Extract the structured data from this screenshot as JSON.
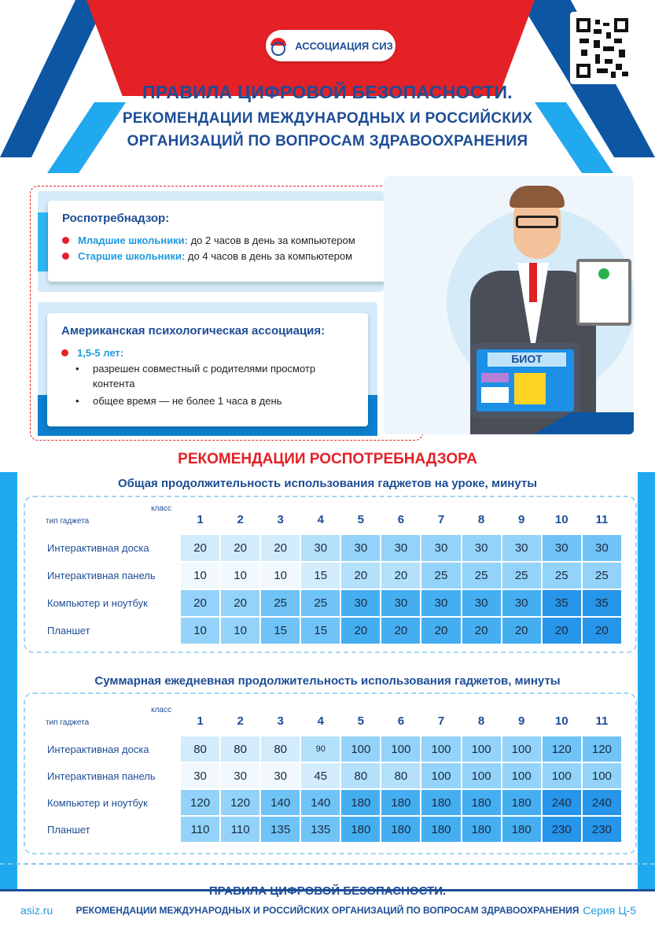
{
  "header": {
    "logo_text": "АССОЦИАЦИЯ СИЗ",
    "title_line1": "ПРАВИЛА ЦИФРОВОЙ БЕЗОПАСНОСТИ.",
    "title_line2": "РЕКОМЕНДАЦИИ МЕЖДУНАРОДНЫХ И РОССИЙСКИХ",
    "title_line3": "ОРГАНИЗАЦИЙ ПО ВОПРОСАМ ЗДРАВООХРАНЕНИЯ"
  },
  "colors": {
    "brand_blue": "#1d4d96",
    "red": "#e32127",
    "light_blue": "#20a9ee",
    "dark_blue": "#0c56a3"
  },
  "info": {
    "rospotreb": {
      "title": "Роспотребнадзор:",
      "items": [
        {
          "label": "Младшие школьники:",
          "text": " до 2 часов в день за компьютером"
        },
        {
          "label": "Старшие школьники:",
          "text": " до 4 часов в день за компьютером"
        }
      ]
    },
    "apa": {
      "title": "Американская психологическая ассоциация:",
      "age": "1,5-5 лет:",
      "subitems": [
        "разрешен  совместный с родителями просмотр контента",
        "общее время — не более 1 часа в день"
      ]
    }
  },
  "illustration": {
    "tablet_label": "БИОТ"
  },
  "section_title": "РЕКОМЕНДАЦИИ РОСПОТРЕБНАДЗОРА",
  "corner": {
    "col": "класс",
    "row": "тип гаджета"
  },
  "grades": [
    "1",
    "2",
    "3",
    "4",
    "5",
    "6",
    "7",
    "8",
    "9",
    "10",
    "11"
  ],
  "table1": {
    "title": "Общая продолжительность использования гаджетов на уроке, минуты",
    "rows": [
      {
        "label": "Интерактивная доска",
        "values": [
          "20",
          "20",
          "20",
          "30",
          "30",
          "30",
          "30",
          "30",
          "30",
          "30",
          "30"
        ]
      },
      {
        "label": "Интерактивная панель",
        "values": [
          "10",
          "10",
          "10",
          "15",
          "20",
          "20",
          "25",
          "25",
          "25",
          "25",
          "25"
        ]
      },
      {
        "label": "Компьютер и ноутбук",
        "values": [
          "20",
          "20",
          "25",
          "25",
          "30",
          "30",
          "30",
          "30",
          "30",
          "35",
          "35"
        ]
      },
      {
        "label": "Планшет",
        "values": [
          "10",
          "10",
          "15",
          "15",
          "20",
          "20",
          "20",
          "20",
          "20",
          "20",
          "20"
        ]
      }
    ]
  },
  "table2": {
    "title": "Суммарная ежедневная продолжительность использования гаджетов, минуты",
    "rows": [
      {
        "label": "Интерактивная доска",
        "values": [
          "80",
          "80",
          "80",
          "90",
          "100",
          "100",
          "100",
          "100",
          "100",
          "120",
          "120"
        ]
      },
      {
        "label": "Интерактивная панель",
        "values": [
          "30",
          "30",
          "30",
          "45",
          "80",
          "80",
          "100",
          "100",
          "100",
          "100",
          "100"
        ]
      },
      {
        "label": "Компьютер и ноутбук",
        "values": [
          "120",
          "120",
          "140",
          "140",
          "180",
          "180",
          "180",
          "180",
          "180",
          "240",
          "240"
        ]
      },
      {
        "label": "Планшет",
        "values": [
          "110",
          "110",
          "135",
          "135",
          "180",
          "180",
          "180",
          "180",
          "180",
          "230",
          "230"
        ]
      }
    ]
  },
  "footer": {
    "site": "asiz.ru",
    "line1": "ПРАВИЛА ЦИФРОВОЙ БЕЗОПАСНОСТИ.",
    "line2": "РЕКОМЕНДАЦИИ МЕЖДУНАРОДНЫХ И РОССИЙСКИХ ОРГАНИЗАЦИЙ ПО ВОПРОСАМ ЗДРАВООХРАНЕНИЯ",
    "series": "Серия Ц-5"
  }
}
